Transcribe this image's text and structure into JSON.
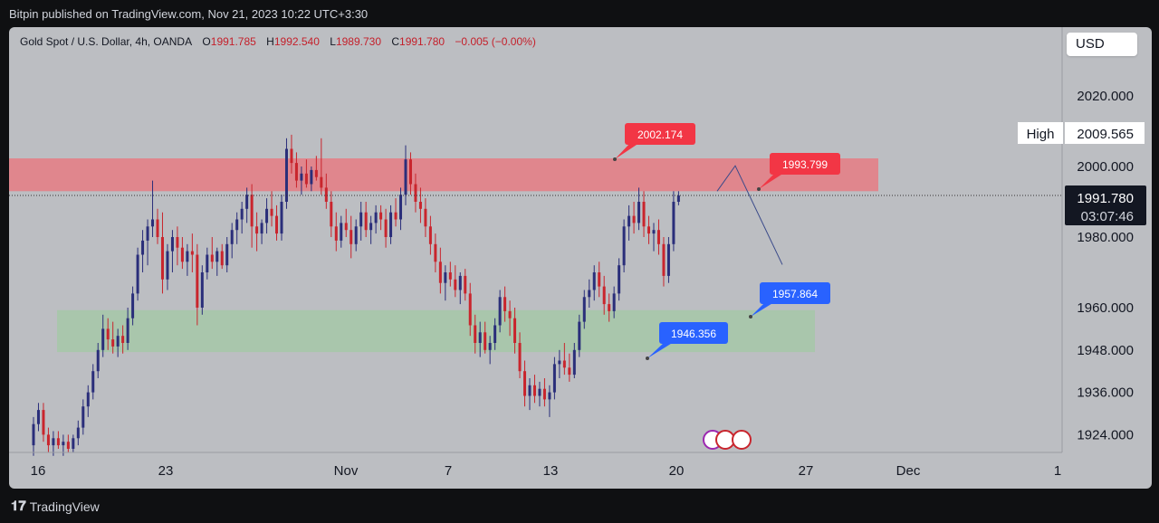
{
  "header": {
    "publisher_line": "Bitpin published on TradingView.com, Nov 21, 2023 10:22 UTC+3:30"
  },
  "legend": {
    "symbol": "Gold Spot / U.S. Dollar, 4h, OANDA",
    "o_label": "O",
    "o_value": "1991.785",
    "h_label": "H",
    "h_value": "1992.540",
    "l_label": "L",
    "l_value": "1989.730",
    "c_label": "C",
    "c_value": "1991.780",
    "change": "−0.005 (−0.00%)"
  },
  "currency_button": "USD",
  "footer": {
    "brand": "TradingView",
    "logo_icon": "tradingview-logo-icon"
  },
  "colors": {
    "background": "#bcbec2",
    "up": "#2a2e7a",
    "down": "#c9252d",
    "resistance_zone": "#e0868d",
    "support_zone": "#a9c6ac",
    "label_red": "#f23645",
    "label_blue": "#2962ff",
    "projection_line": "#3a4a8a"
  },
  "chart_data": {
    "type": "candlestick",
    "instrument": "Gold Spot / U.S. Dollar, 4h, OANDA",
    "ylim": [
      1920,
      2030
    ],
    "y_ticks": [
      "2020.000",
      "2000.000",
      "1980.000",
      "1960.000",
      "1948.000",
      "1936.000",
      "1924.000"
    ],
    "x_tick_labels": [
      "16",
      "23",
      "Nov",
      "7",
      "13",
      "20",
      "27",
      "Dec",
      "1"
    ],
    "current_price": "1991.780",
    "countdown": "03:07:46",
    "high_label": "High",
    "high_value": "2009.565",
    "zones": [
      {
        "name": "resistance",
        "from": 1993.0,
        "to": 2002.3,
        "x_start": "16",
        "x_end": "Nov 30"
      },
      {
        "name": "support",
        "from": 1947.4,
        "to": 1959.3,
        "x_start": "Oct 17",
        "x_end": "Nov 27"
      }
    ],
    "annotations": [
      {
        "text": "2002.174",
        "color": "red",
        "price": 2002.174
      },
      {
        "text": "1993.799",
        "color": "red",
        "price": 1993.799
      },
      {
        "text": "1957.864",
        "color": "blue",
        "price": 1957.864
      },
      {
        "text": "1946.356",
        "color": "blue",
        "price": 1946.356
      }
    ],
    "projection": [
      {
        "date": "Nov 21",
        "price": 1993.0
      },
      {
        "date": "Nov 23",
        "price": 2000.2
      },
      {
        "date": "Nov 26",
        "price": 1972.2
      }
    ],
    "candles": [
      {
        "o": 1921,
        "h": 1929,
        "l": 1918,
        "c": 1927
      },
      {
        "o": 1927,
        "h": 1933,
        "l": 1925,
        "c": 1931
      },
      {
        "o": 1931,
        "h": 1933,
        "l": 1922,
        "c": 1924
      },
      {
        "o": 1924,
        "h": 1926,
        "l": 1919,
        "c": 1921
      },
      {
        "o": 1921,
        "h": 1925,
        "l": 1918,
        "c": 1923
      },
      {
        "o": 1923,
        "h": 1925,
        "l": 1920,
        "c": 1921
      },
      {
        "o": 1921,
        "h": 1924,
        "l": 1918,
        "c": 1922
      },
      {
        "o": 1922,
        "h": 1924,
        "l": 1919,
        "c": 1920
      },
      {
        "o": 1920,
        "h": 1924,
        "l": 1919,
        "c": 1923
      },
      {
        "o": 1923,
        "h": 1928,
        "l": 1921,
        "c": 1926
      },
      {
        "o": 1926,
        "h": 1934,
        "l": 1924,
        "c": 1932
      },
      {
        "o": 1932,
        "h": 1938,
        "l": 1929,
        "c": 1936
      },
      {
        "o": 1936,
        "h": 1944,
        "l": 1934,
        "c": 1942
      },
      {
        "o": 1942,
        "h": 1950,
        "l": 1940,
        "c": 1948
      },
      {
        "o": 1948,
        "h": 1958,
        "l": 1946,
        "c": 1954
      },
      {
        "o": 1954,
        "h": 1957,
        "l": 1948,
        "c": 1951
      },
      {
        "o": 1951,
        "h": 1956,
        "l": 1947,
        "c": 1949
      },
      {
        "o": 1949,
        "h": 1954,
        "l": 1946,
        "c": 1952
      },
      {
        "o": 1952,
        "h": 1955,
        "l": 1947,
        "c": 1950
      },
      {
        "o": 1950,
        "h": 1960,
        "l": 1948,
        "c": 1957
      },
      {
        "o": 1957,
        "h": 1966,
        "l": 1955,
        "c": 1964
      },
      {
        "o": 1964,
        "h": 1977,
        "l": 1962,
        "c": 1975
      },
      {
        "o": 1975,
        "h": 1982,
        "l": 1970,
        "c": 1979
      },
      {
        "o": 1979,
        "h": 1985,
        "l": 1972,
        "c": 1983
      },
      {
        "o": 1983,
        "h": 1996,
        "l": 1980,
        "c": 1985
      },
      {
        "o": 1985,
        "h": 1988,
        "l": 1978,
        "c": 1980
      },
      {
        "o": 1980,
        "h": 1987,
        "l": 1964,
        "c": 1968
      },
      {
        "o": 1968,
        "h": 1978,
        "l": 1965,
        "c": 1976
      },
      {
        "o": 1976,
        "h": 1982,
        "l": 1970,
        "c": 1980
      },
      {
        "o": 1980,
        "h": 1983,
        "l": 1972,
        "c": 1977
      },
      {
        "o": 1977,
        "h": 1980,
        "l": 1971,
        "c": 1973
      },
      {
        "o": 1973,
        "h": 1978,
        "l": 1969,
        "c": 1976
      },
      {
        "o": 1976,
        "h": 1981,
        "l": 1970,
        "c": 1975
      },
      {
        "o": 1975,
        "h": 1978,
        "l": 1955,
        "c": 1960
      },
      {
        "o": 1960,
        "h": 1972,
        "l": 1958,
        "c": 1970
      },
      {
        "o": 1970,
        "h": 1977,
        "l": 1968,
        "c": 1975
      },
      {
        "o": 1975,
        "h": 1980,
        "l": 1971,
        "c": 1973
      },
      {
        "o": 1973,
        "h": 1977,
        "l": 1969,
        "c": 1976
      },
      {
        "o": 1976,
        "h": 1978,
        "l": 1971,
        "c": 1972
      },
      {
        "o": 1972,
        "h": 1980,
        "l": 1970,
        "c": 1978
      },
      {
        "o": 1978,
        "h": 1984,
        "l": 1974,
        "c": 1982
      },
      {
        "o": 1982,
        "h": 1987,
        "l": 1978,
        "c": 1985
      },
      {
        "o": 1985,
        "h": 1990,
        "l": 1981,
        "c": 1988
      },
      {
        "o": 1988,
        "h": 1994,
        "l": 1984,
        "c": 1992
      },
      {
        "o": 1992,
        "h": 1995,
        "l": 1977,
        "c": 1983
      },
      {
        "o": 1983,
        "h": 1987,
        "l": 1976,
        "c": 1981
      },
      {
        "o": 1981,
        "h": 1985,
        "l": 1978,
        "c": 1984
      },
      {
        "o": 1984,
        "h": 1991,
        "l": 1981,
        "c": 1988
      },
      {
        "o": 1988,
        "h": 1993,
        "l": 1983,
        "c": 1986
      },
      {
        "o": 1986,
        "h": 1989,
        "l": 1979,
        "c": 1981
      },
      {
        "o": 1981,
        "h": 1992,
        "l": 1979,
        "c": 1990
      },
      {
        "o": 1990,
        "h": 2008,
        "l": 1988,
        "c": 2005
      },
      {
        "o": 2005,
        "h": 2009,
        "l": 1998,
        "c": 2001
      },
      {
        "o": 2001,
        "h": 2004,
        "l": 1994,
        "c": 1996
      },
      {
        "o": 1996,
        "h": 2000,
        "l": 1992,
        "c": 1998
      },
      {
        "o": 1998,
        "h": 2002,
        "l": 1994,
        "c": 1995
      },
      {
        "o": 1995,
        "h": 2000,
        "l": 1993,
        "c": 1999
      },
      {
        "o": 1999,
        "h": 2003,
        "l": 1996,
        "c": 1997
      },
      {
        "o": 1997,
        "h": 2008,
        "l": 1992,
        "c": 1994
      },
      {
        "o": 1994,
        "h": 1998,
        "l": 1988,
        "c": 1990
      },
      {
        "o": 1990,
        "h": 1993,
        "l": 1980,
        "c": 1983
      },
      {
        "o": 1983,
        "h": 1987,
        "l": 1976,
        "c": 1979
      },
      {
        "o": 1979,
        "h": 1986,
        "l": 1977,
        "c": 1984
      },
      {
        "o": 1984,
        "h": 1988,
        "l": 1980,
        "c": 1982
      },
      {
        "o": 1982,
        "h": 1986,
        "l": 1974,
        "c": 1978
      },
      {
        "o": 1978,
        "h": 1985,
        "l": 1976,
        "c": 1983
      },
      {
        "o": 1983,
        "h": 1990,
        "l": 1979,
        "c": 1987
      },
      {
        "o": 1987,
        "h": 1990,
        "l": 1980,
        "c": 1982
      },
      {
        "o": 1982,
        "h": 1986,
        "l": 1978,
        "c": 1984
      },
      {
        "o": 1984,
        "h": 1989,
        "l": 1981,
        "c": 1987
      },
      {
        "o": 1987,
        "h": 1989,
        "l": 1982,
        "c": 1985
      },
      {
        "o": 1985,
        "h": 1988,
        "l": 1977,
        "c": 1980
      },
      {
        "o": 1980,
        "h": 1989,
        "l": 1978,
        "c": 1987
      },
      {
        "o": 1987,
        "h": 1991,
        "l": 1983,
        "c": 1985
      },
      {
        "o": 1985,
        "h": 1994,
        "l": 1982,
        "c": 1992
      },
      {
        "o": 1992,
        "h": 2006,
        "l": 1989,
        "c": 2002
      },
      {
        "o": 2002,
        "h": 2004,
        "l": 1992,
        "c": 1995
      },
      {
        "o": 1995,
        "h": 1998,
        "l": 1987,
        "c": 1990
      },
      {
        "o": 1990,
        "h": 1994,
        "l": 1984,
        "c": 1988
      },
      {
        "o": 1988,
        "h": 1991,
        "l": 1980,
        "c": 1983
      },
      {
        "o": 1983,
        "h": 1986,
        "l": 1975,
        "c": 1978
      },
      {
        "o": 1978,
        "h": 1981,
        "l": 1970,
        "c": 1973
      },
      {
        "o": 1973,
        "h": 1977,
        "l": 1964,
        "c": 1967
      },
      {
        "o": 1967,
        "h": 1972,
        "l": 1962,
        "c": 1970
      },
      {
        "o": 1970,
        "h": 1973,
        "l": 1966,
        "c": 1968
      },
      {
        "o": 1968,
        "h": 1972,
        "l": 1963,
        "c": 1965
      },
      {
        "o": 1965,
        "h": 1970,
        "l": 1961,
        "c": 1969
      },
      {
        "o": 1969,
        "h": 1971,
        "l": 1962,
        "c": 1964
      },
      {
        "o": 1964,
        "h": 1967,
        "l": 1952,
        "c": 1955
      },
      {
        "o": 1955,
        "h": 1958,
        "l": 1947,
        "c": 1950
      },
      {
        "o": 1950,
        "h": 1956,
        "l": 1946,
        "c": 1953
      },
      {
        "o": 1953,
        "h": 1956,
        "l": 1947,
        "c": 1948
      },
      {
        "o": 1948,
        "h": 1952,
        "l": 1944,
        "c": 1950
      },
      {
        "o": 1950,
        "h": 1957,
        "l": 1948,
        "c": 1955
      },
      {
        "o": 1955,
        "h": 1965,
        "l": 1953,
        "c": 1963
      },
      {
        "o": 1963,
        "h": 1966,
        "l": 1956,
        "c": 1959
      },
      {
        "o": 1959,
        "h": 1962,
        "l": 1952,
        "c": 1957
      },
      {
        "o": 1957,
        "h": 1960,
        "l": 1947,
        "c": 1950
      },
      {
        "o": 1950,
        "h": 1953,
        "l": 1940,
        "c": 1942
      },
      {
        "o": 1942,
        "h": 1945,
        "l": 1932,
        "c": 1935
      },
      {
        "o": 1935,
        "h": 1940,
        "l": 1931,
        "c": 1938
      },
      {
        "o": 1938,
        "h": 1941,
        "l": 1933,
        "c": 1935
      },
      {
        "o": 1935,
        "h": 1939,
        "l": 1932,
        "c": 1937
      },
      {
        "o": 1937,
        "h": 1940,
        "l": 1932,
        "c": 1934
      },
      {
        "o": 1934,
        "h": 1938,
        "l": 1929,
        "c": 1936
      },
      {
        "o": 1936,
        "h": 1946,
        "l": 1934,
        "c": 1944
      },
      {
        "o": 1944,
        "h": 1948,
        "l": 1940,
        "c": 1945
      },
      {
        "o": 1945,
        "h": 1950,
        "l": 1941,
        "c": 1943
      },
      {
        "o": 1943,
        "h": 1947,
        "l": 1939,
        "c": 1941
      },
      {
        "o": 1941,
        "h": 1950,
        "l": 1940,
        "c": 1948
      },
      {
        "o": 1948,
        "h": 1958,
        "l": 1946,
        "c": 1956
      },
      {
        "o": 1956,
        "h": 1965,
        "l": 1954,
        "c": 1963
      },
      {
        "o": 1963,
        "h": 1968,
        "l": 1960,
        "c": 1965
      },
      {
        "o": 1965,
        "h": 1972,
        "l": 1962,
        "c": 1970
      },
      {
        "o": 1970,
        "h": 1973,
        "l": 1963,
        "c": 1966
      },
      {
        "o": 1966,
        "h": 1969,
        "l": 1958,
        "c": 1961
      },
      {
        "o": 1961,
        "h": 1964,
        "l": 1956,
        "c": 1959
      },
      {
        "o": 1959,
        "h": 1966,
        "l": 1957,
        "c": 1964
      },
      {
        "o": 1964,
        "h": 1974,
        "l": 1962,
        "c": 1972
      },
      {
        "o": 1972,
        "h": 1985,
        "l": 1970,
        "c": 1983
      },
      {
        "o": 1983,
        "h": 1989,
        "l": 1979,
        "c": 1986
      },
      {
        "o": 1986,
        "h": 1990,
        "l": 1981,
        "c": 1984
      },
      {
        "o": 1984,
        "h": 1994,
        "l": 1982,
        "c": 1990
      },
      {
        "o": 1990,
        "h": 1993,
        "l": 1980,
        "c": 1983
      },
      {
        "o": 1983,
        "h": 1986,
        "l": 1978,
        "c": 1981
      },
      {
        "o": 1981,
        "h": 1984,
        "l": 1976,
        "c": 1982
      },
      {
        "o": 1982,
        "h": 1985,
        "l": 1975,
        "c": 1978
      },
      {
        "o": 1978,
        "h": 1980,
        "l": 1966,
        "c": 1969
      },
      {
        "o": 1969,
        "h": 1980,
        "l": 1967,
        "c": 1978
      },
      {
        "o": 1978,
        "h": 1993,
        "l": 1976,
        "c": 1990
      },
      {
        "o": 1990,
        "h": 1993,
        "l": 1989,
        "c": 1991.78
      }
    ]
  }
}
